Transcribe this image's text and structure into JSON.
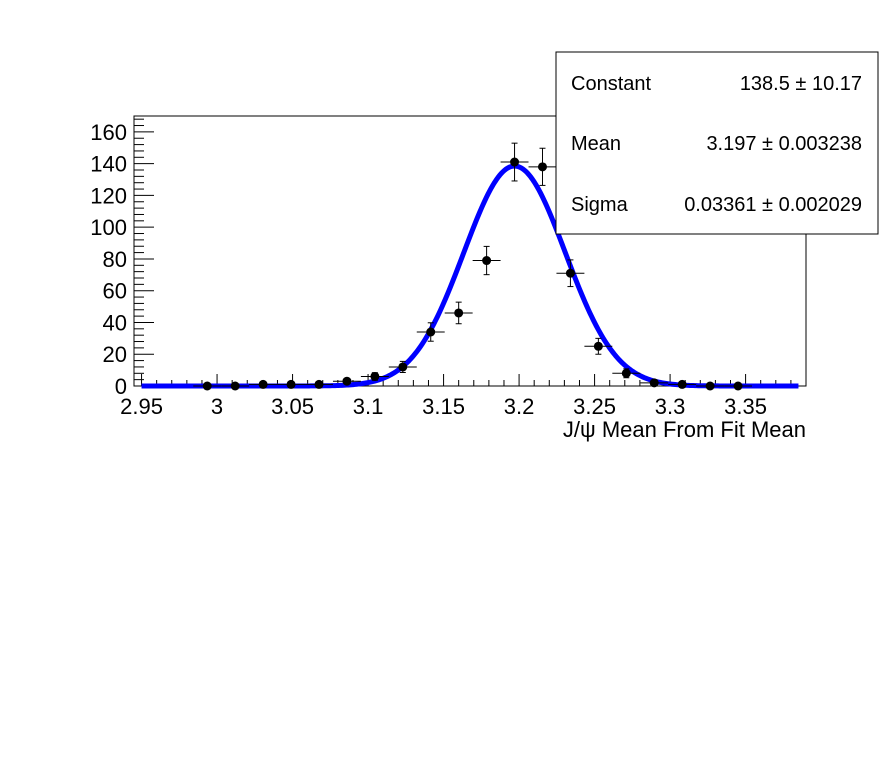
{
  "chart_data": {
    "type": "scatter",
    "xlabel": "J/ψ Mean From Fit Mean",
    "ylabel": "",
    "xlim": [
      2.945,
      3.39
    ],
    "ylim": [
      0,
      170
    ],
    "x_ticks": [
      "2.95",
      "3",
      "3.05",
      "3.1",
      "3.15",
      "3.2",
      "3.25",
      "3.3",
      "3.35"
    ],
    "x_tick_values": [
      2.95,
      3.0,
      3.05,
      3.1,
      3.15,
      3.2,
      3.25,
      3.3,
      3.35
    ],
    "y_ticks": [
      "0",
      "20",
      "40",
      "60",
      "80",
      "100",
      "120",
      "140",
      "160"
    ],
    "y_tick_values": [
      0,
      20,
      40,
      60,
      80,
      100,
      120,
      140,
      160
    ],
    "bin_half_width": 0.00925,
    "points": [
      {
        "x": 2.9935,
        "y": 0,
        "err": 0
      },
      {
        "x": 3.012,
        "y": 0,
        "err": 0
      },
      {
        "x": 3.0305,
        "y": 1,
        "err": 1
      },
      {
        "x": 3.049,
        "y": 1,
        "err": 1
      },
      {
        "x": 3.0675,
        "y": 1,
        "err": 1
      },
      {
        "x": 3.086,
        "y": 3,
        "err": 1.7
      },
      {
        "x": 3.1045,
        "y": 6,
        "err": 2.4
      },
      {
        "x": 3.123,
        "y": 12,
        "err": 3.5
      },
      {
        "x": 3.1415,
        "y": 34,
        "err": 5.8
      },
      {
        "x": 3.16,
        "y": 46,
        "err": 6.8
      },
      {
        "x": 3.1785,
        "y": 79,
        "err": 8.9
      },
      {
        "x": 3.197,
        "y": 141,
        "err": 11.9
      },
      {
        "x": 3.2155,
        "y": 138,
        "err": 11.7
      },
      {
        "x": 3.234,
        "y": 71,
        "err": 8.4
      },
      {
        "x": 3.2525,
        "y": 25,
        "err": 5.0
      },
      {
        "x": 3.271,
        "y": 8,
        "err": 2.8
      },
      {
        "x": 3.2895,
        "y": 2,
        "err": 1.4
      },
      {
        "x": 3.308,
        "y": 1,
        "err": 1
      },
      {
        "x": 3.3265,
        "y": 0,
        "err": 0
      },
      {
        "x": 3.345,
        "y": 0,
        "err": 0
      }
    ],
    "fit": {
      "function": "gaussian",
      "constant": 138.5,
      "mean": 3.197,
      "sigma": 0.03361,
      "x_range": [
        2.95,
        3.385
      ],
      "color": "#0000ff"
    },
    "grid": false,
    "legend": "top-right stats box"
  },
  "stats_box": {
    "rows": [
      {
        "label": "Constant",
        "value": "138.5 ± 10.17"
      },
      {
        "label": "Mean",
        "value": "3.197 ± 0.003238"
      },
      {
        "label": "Sigma",
        "value": "0.03361 ± 0.002029"
      }
    ]
  }
}
